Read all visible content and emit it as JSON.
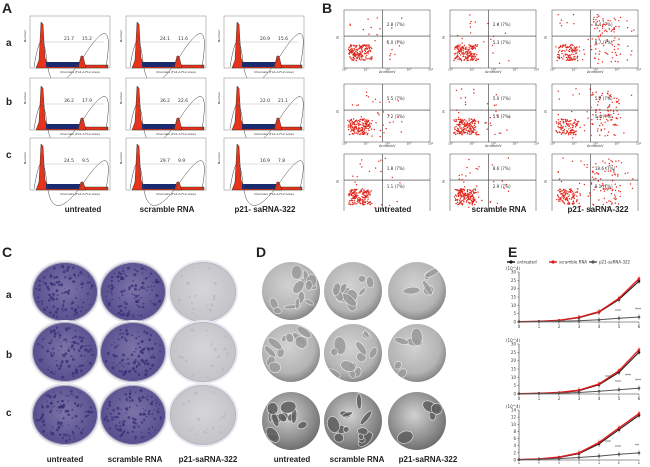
{
  "panels": {
    "A": {
      "label": "A",
      "rows": [
        "a",
        "b",
        "c"
      ],
      "cols": [
        "untreated",
        "scramble RNA",
        "p21- saRNA-322"
      ],
      "xlabel": "Channels (FL2-A-FL2-Area)",
      "ylabel": "Number",
      "values": [
        [
          [
            "21.7",
            "15.2"
          ],
          [
            "24.1",
            "11.6"
          ],
          [
            "20.9",
            "15.6"
          ]
        ],
        [
          [
            "36.2",
            "17.9"
          ],
          [
            "36.2",
            "22.6"
          ],
          [
            "22.0",
            "21.1"
          ]
        ],
        [
          [
            "24.5",
            "9.5"
          ],
          [
            "29.7",
            "9.9"
          ],
          [
            "16.9",
            "7.8"
          ]
        ]
      ]
    },
    "B": {
      "label": "B",
      "cols": [
        "untreated",
        "scramble RNA",
        "p21- saRNA-322"
      ],
      "xlabel": "AnnexinV",
      "ylabel": "PI",
      "quads": [
        [
          [
            "2.8 (7%)",
            "5.0 (7%)"
          ],
          [
            "2.4 (7%)",
            "5.3 (7%)"
          ],
          [
            "8.4 (7%)",
            "8.7 (7%)"
          ]
        ],
        [
          [
            "5.5 (7%)",
            "7.2 (7%)"
          ],
          [
            "5.0 (7%)",
            "5.8 (7%)"
          ],
          [
            "5.7 (7%)",
            "5.4 (7%)"
          ]
        ],
        [
          [
            "1.8 (7%)",
            "1.1 (7%)"
          ],
          [
            "8.6 (7%)",
            "2.9 (7%)"
          ],
          [
            "18.6 (7%)",
            "8.1 (7%)"
          ]
        ]
      ]
    },
    "C": {
      "label": "C",
      "rows": [
        "a",
        "b",
        "c"
      ],
      "cols": [
        "untreated",
        "scramble RNA",
        "p21-saRNA-322"
      ]
    },
    "D": {
      "label": "D",
      "cols": [
        "untreated",
        "scramble RNA",
        "p21-saRNA-322"
      ]
    },
    "E": {
      "label": "E",
      "legend": [
        "untreated",
        "scramble RNA",
        "p21-saRNA-322"
      ],
      "colors": {
        "untreated": "#111111",
        "scramble": "#e01b1b",
        "saRNA": "#555555"
      }
    }
  },
  "chart_data": [
    {
      "type": "line",
      "title": "",
      "scale_label": "(10^4)",
      "x": [
        0,
        1,
        2,
        3,
        4,
        5,
        6
      ],
      "xlim": [
        0,
        6
      ],
      "ylim": [
        0,
        30
      ],
      "yticks": [
        0,
        5,
        10,
        15,
        20,
        25,
        30
      ],
      "series": [
        {
          "name": "untreated",
          "values": [
            0.2,
            0.4,
            0.9,
            2.5,
            5.8,
            13.5,
            24.5
          ]
        },
        {
          "name": "scramble RNA",
          "values": [
            0.2,
            0.4,
            1.0,
            2.8,
            6.2,
            14.2,
            26.0
          ]
        },
        {
          "name": "p21-saRNA-322",
          "values": [
            0.2,
            0.3,
            0.5,
            0.8,
            1.3,
            2.2,
            3.0
          ]
        }
      ],
      "annotations": [
        "***",
        "***"
      ]
    },
    {
      "type": "line",
      "scale_label": "(10^4)",
      "x": [
        0,
        1,
        2,
        3,
        4,
        5,
        6
      ],
      "xlim": [
        0,
        6
      ],
      "ylim": [
        0,
        30
      ],
      "yticks": [
        0,
        5,
        10,
        15,
        20,
        25,
        30
      ],
      "series": [
        {
          "name": "untreated",
          "values": [
            0.2,
            0.4,
            0.8,
            2.0,
            5.5,
            13.0,
            25.0
          ]
        },
        {
          "name": "scramble RNA",
          "values": [
            0.2,
            0.4,
            0.9,
            2.3,
            6.0,
            14.0,
            26.5
          ]
        },
        {
          "name": "p21-saRNA-322",
          "values": [
            0.2,
            0.3,
            0.5,
            0.9,
            1.6,
            2.6,
            3.5
          ]
        }
      ],
      "annotations": [
        "***",
        "***",
        "***",
        "***"
      ]
    },
    {
      "type": "line",
      "scale_label": "(10^4)",
      "x": [
        0,
        1,
        2,
        3,
        4,
        5,
        6
      ],
      "xlim": [
        0,
        6
      ],
      "ylim": [
        0,
        14
      ],
      "yticks": [
        0,
        2,
        4,
        6,
        8,
        10,
        12,
        14
      ],
      "series": [
        {
          "name": "untreated",
          "values": [
            0.1,
            0.3,
            0.7,
            1.8,
            4.5,
            8.5,
            12.5
          ]
        },
        {
          "name": "scramble RNA",
          "values": [
            0.1,
            0.3,
            0.8,
            2.0,
            4.9,
            9.0,
            13.0
          ]
        },
        {
          "name": "p21-saRNA-322",
          "values": [
            0.1,
            0.2,
            0.4,
            0.7,
            1.1,
            1.6,
            2.0
          ]
        }
      ],
      "annotations": [
        "***",
        "**",
        "***"
      ]
    }
  ]
}
